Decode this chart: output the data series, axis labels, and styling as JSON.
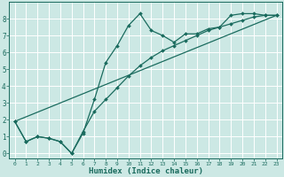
{
  "xlabel": "Humidex (Indice chaleur)",
  "bg_color": "#cce8e4",
  "grid_color": "#ffffff",
  "line_color": "#1a6b5e",
  "xlim": [
    -0.5,
    23.5
  ],
  "ylim": [
    -0.3,
    9.0
  ],
  "xticks": [
    0,
    1,
    2,
    3,
    4,
    5,
    6,
    7,
    8,
    9,
    10,
    11,
    12,
    13,
    14,
    15,
    16,
    17,
    18,
    19,
    20,
    21,
    22,
    23
  ],
  "yticks": [
    0,
    1,
    2,
    3,
    4,
    5,
    6,
    7,
    8
  ],
  "line1_x": [
    0,
    1,
    2,
    3,
    4,
    5,
    6,
    7,
    8,
    9,
    10,
    11,
    12,
    13,
    14,
    15,
    16,
    17,
    18,
    19,
    20,
    21,
    22,
    23
  ],
  "line1_y": [
    1.9,
    0.7,
    1.0,
    0.9,
    0.7,
    0.0,
    1.2,
    3.2,
    5.4,
    6.4,
    7.6,
    8.3,
    7.3,
    7.0,
    6.6,
    7.1,
    7.1,
    7.4,
    7.5,
    8.2,
    8.3,
    8.3,
    8.2,
    8.2
  ],
  "line2_x": [
    0,
    1,
    2,
    3,
    4,
    5,
    6,
    7,
    8,
    9,
    10,
    11,
    12,
    13,
    14,
    15,
    16,
    17,
    18,
    19,
    20,
    21,
    22,
    23
  ],
  "line2_y": [
    1.9,
    0.7,
    1.0,
    0.9,
    0.7,
    0.0,
    1.3,
    2.5,
    3.2,
    3.9,
    4.6,
    5.2,
    5.7,
    6.1,
    6.4,
    6.7,
    7.0,
    7.3,
    7.5,
    7.7,
    7.9,
    8.1,
    8.2,
    8.2
  ],
  "line3_x": [
    0,
    23
  ],
  "line3_y": [
    1.9,
    8.2
  ]
}
